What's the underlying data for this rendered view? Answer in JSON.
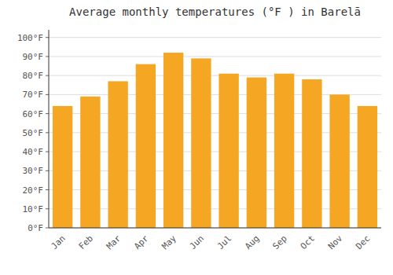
{
  "chart_data": {
    "type": "bar",
    "title": "Average monthly temperatures (°F ) in Barelā",
    "categories": [
      "Jan",
      "Feb",
      "Mar",
      "Apr",
      "May",
      "Jun",
      "Jul",
      "Aug",
      "Sep",
      "Oct",
      "Nov",
      "Dec"
    ],
    "values": [
      64,
      69,
      77,
      86,
      92,
      89,
      81,
      79,
      81,
      78,
      70,
      64
    ],
    "color": "#F5A623",
    "ylim": [
      0,
      104
    ],
    "yticks": [
      {
        "value": 0,
        "label": "0°F"
      },
      {
        "value": 10,
        "label": "10°F"
      },
      {
        "value": 20,
        "label": "20°F"
      },
      {
        "value": 30,
        "label": "30°F"
      },
      {
        "value": 40,
        "label": "40°F"
      },
      {
        "value": 50,
        "label": "50°F"
      },
      {
        "value": 60,
        "label": "60°F"
      },
      {
        "value": 70,
        "label": "70°F"
      },
      {
        "value": 80,
        "label": "80°F"
      },
      {
        "value": 90,
        "label": "90°F"
      },
      {
        "value": 100,
        "label": "100°F"
      }
    ],
    "grid": true
  }
}
